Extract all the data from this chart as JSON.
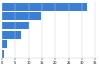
{
  "values": [
    32000,
    14500,
    10000,
    7000,
    1800,
    600
  ],
  "bar_color": "#3a7fd5",
  "background_color": "#ffffff",
  "xlim": [
    0,
    36000
  ],
  "bar_height": 0.85,
  "figsize": [
    1.0,
    0.71
  ],
  "dpi": 100,
  "xticks": [
    0,
    5000,
    10000,
    15000,
    20000,
    25000,
    30000,
    35000
  ],
  "tick_fontsize": 2.5,
  "grid_color": "#cccccc",
  "spine_color": "#cccccc"
}
